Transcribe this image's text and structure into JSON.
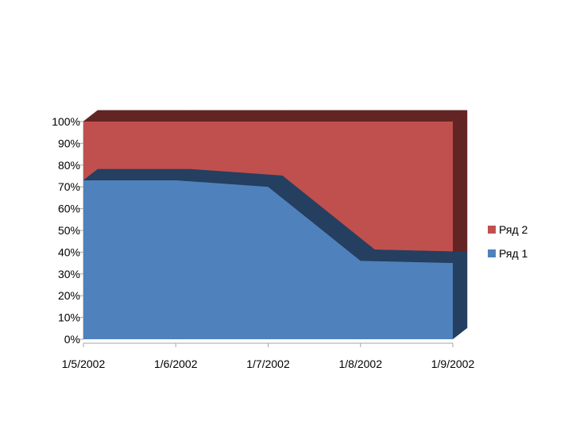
{
  "chart_data": {
    "type": "area",
    "stacking": "percent",
    "style": "3d",
    "categories": [
      "1/5/2002",
      "1/6/2002",
      "1/7/2002",
      "1/8/2002",
      "1/9/2002"
    ],
    "y_ticks": [
      "0%",
      "10%",
      "20%",
      "30%",
      "40%",
      "50%",
      "60%",
      "70%",
      "80%",
      "90%",
      "100%"
    ],
    "ylim": [
      0,
      100
    ],
    "series": [
      {
        "name": "Ряд 1",
        "values": [
          73,
          73,
          70,
          36,
          35
        ],
        "color": "#4F81BD",
        "dark_color": "#243F60"
      },
      {
        "name": "Ряд 2",
        "values": [
          27,
          27,
          30,
          64,
          65
        ],
        "color": "#C0504D",
        "dark_color": "#632523"
      }
    ],
    "legend": {
      "position": "right",
      "order": [
        "Ряд 2",
        "Ряд 1"
      ]
    },
    "grid": false
  }
}
